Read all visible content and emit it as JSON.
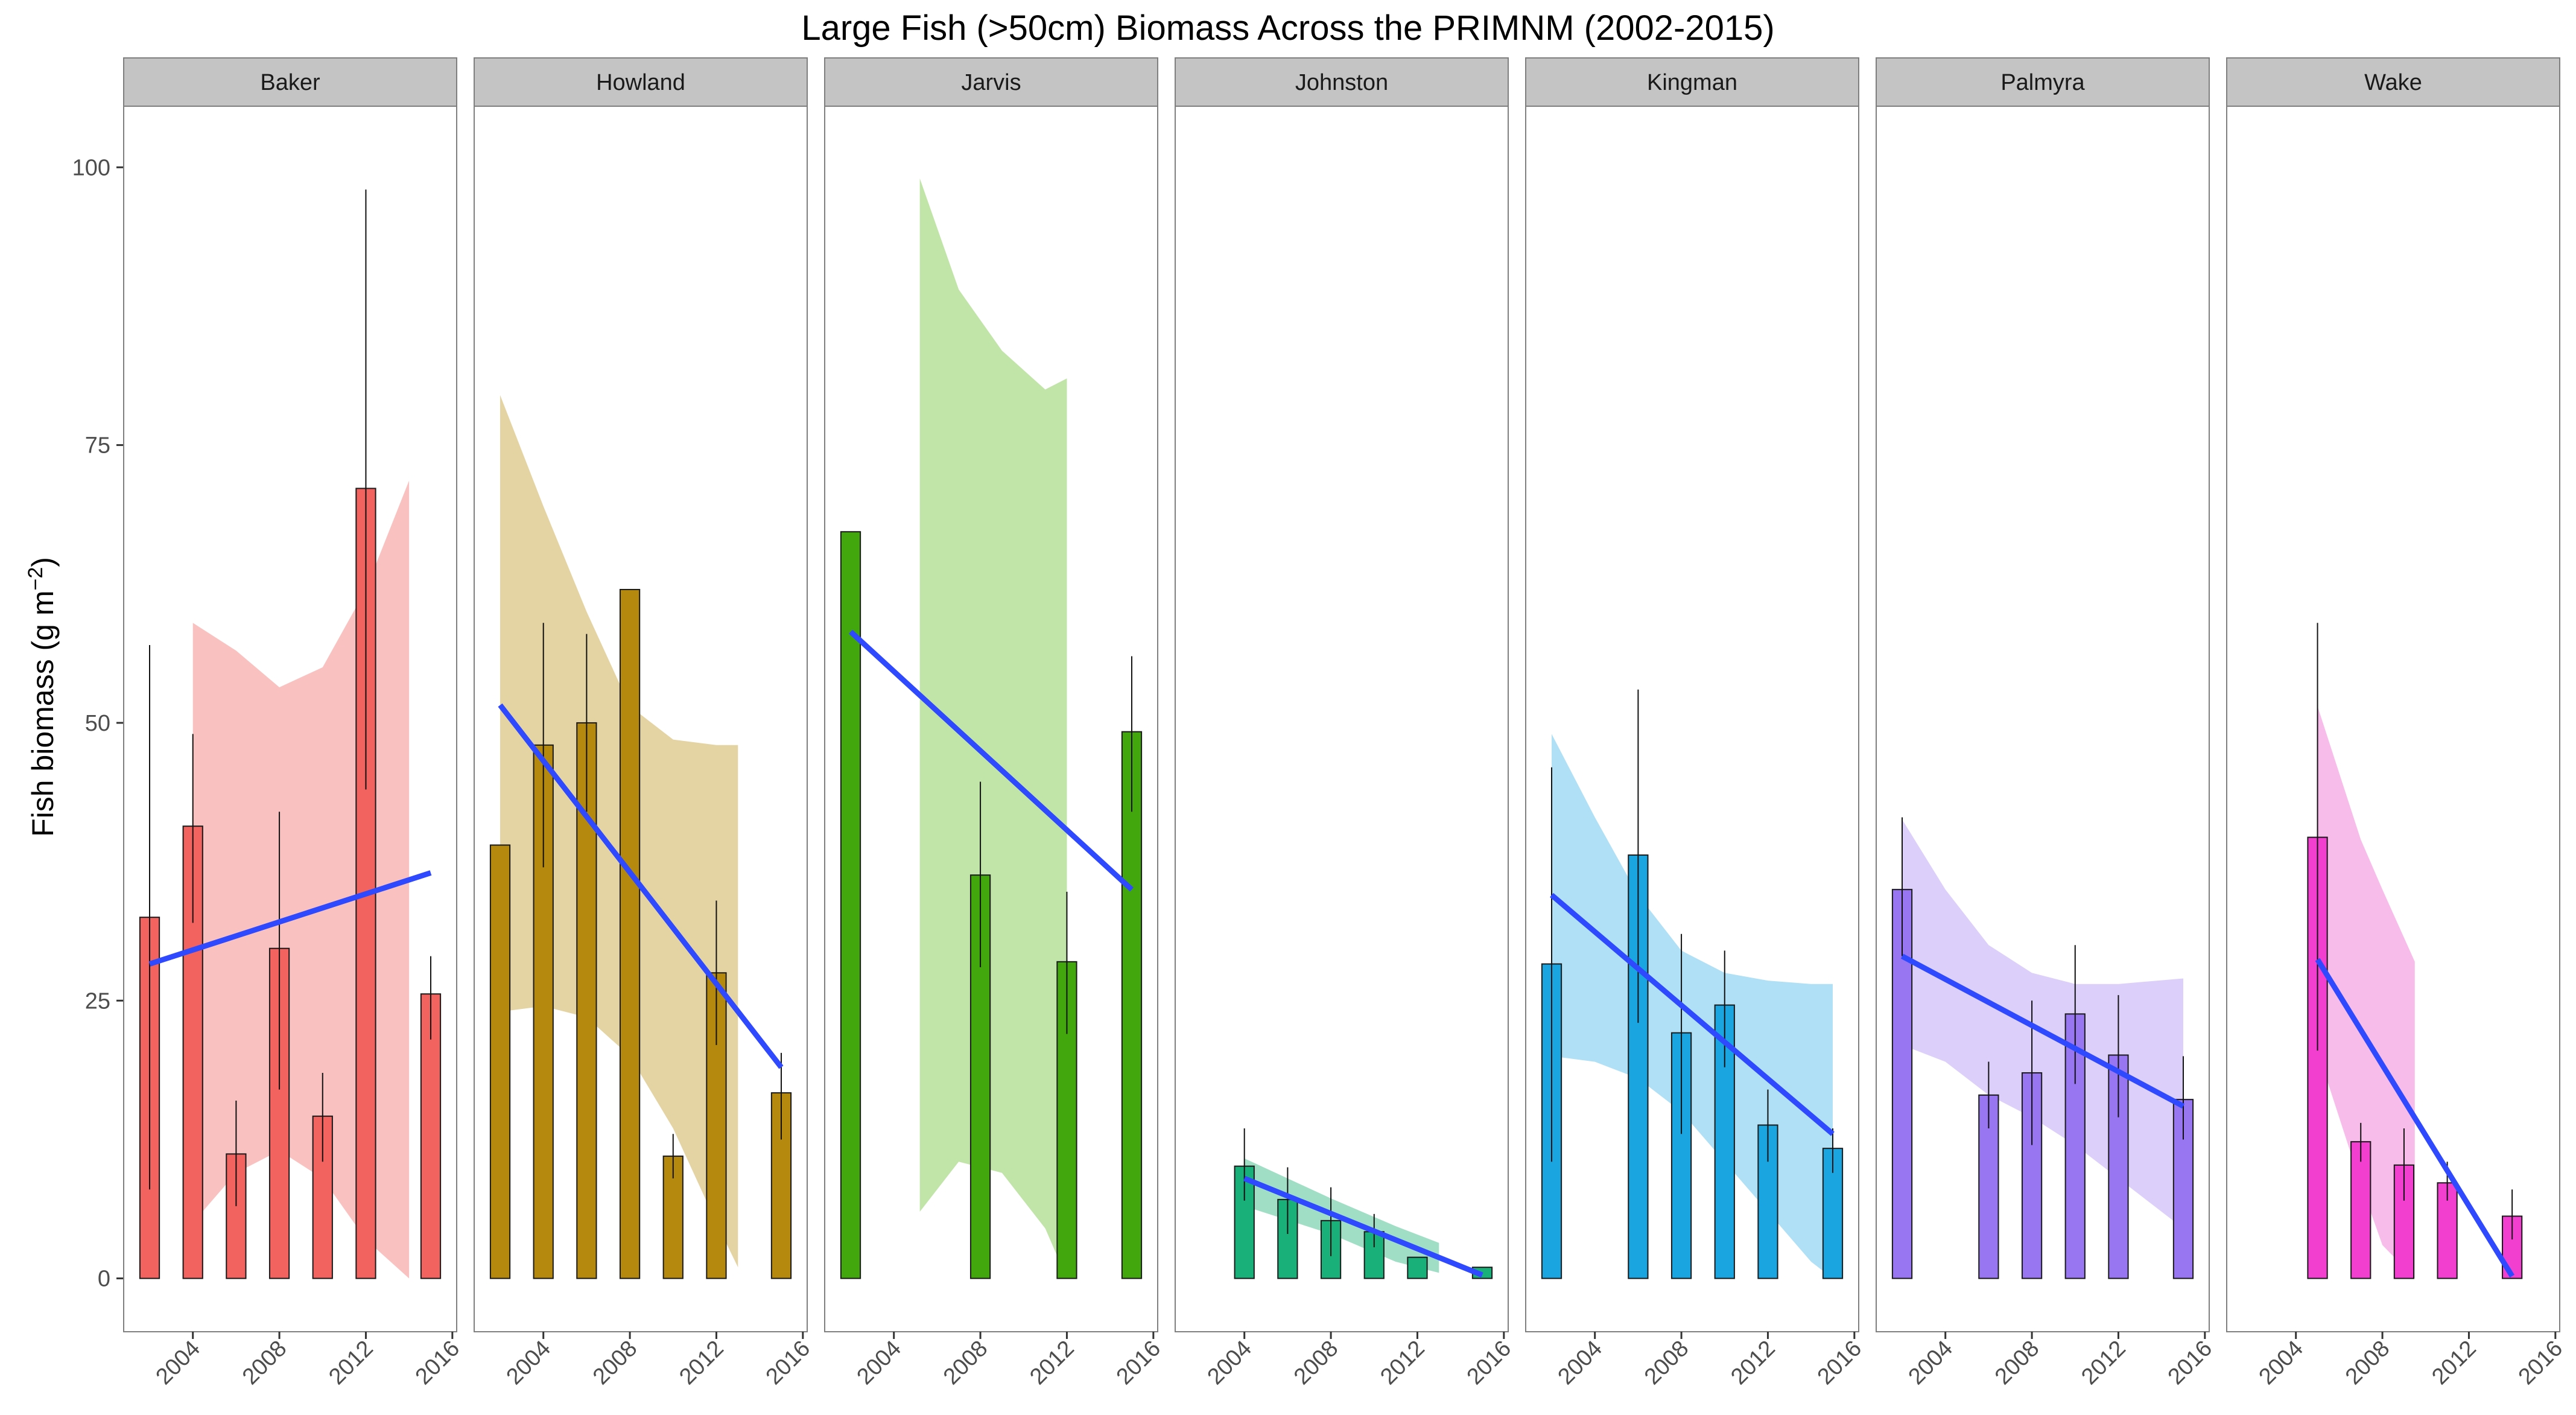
{
  "chart_data": {
    "type": "bar",
    "title": "Large Fish (>50cm) Biomass Across the PRIMNM (2002-2015)",
    "ylabel": "Fish biomass (g m",
    "ylabel_sup": "−2",
    "ylabel_suffix": ")",
    "xlabel": "",
    "ylim": [
      -4.8,
      105.5
    ],
    "xlim": [
      2000.8,
      2016.2
    ],
    "y_ticks": [
      "0",
      "25",
      "50",
      "75",
      "100"
    ],
    "y_tick_values": [
      0,
      25,
      50,
      75,
      100
    ],
    "x_ticks": [
      "2004",
      "2008",
      "2012",
      "2016"
    ],
    "x_tick_values": [
      2004,
      2008,
      2012,
      2016
    ],
    "bar_width_years": 0.9,
    "trend_color": "#2f49ff",
    "panels": [
      {
        "name": "Baker",
        "color": "#f2625f",
        "ribbon_color": "#f8b7b5",
        "bars": [
          {
            "x": 2002,
            "y": 32.5,
            "lo": 8,
            "hi": 57
          },
          {
            "x": 2004,
            "y": 40.7,
            "lo": 32,
            "hi": 49
          },
          {
            "x": 2006,
            "y": 11.2,
            "lo": 6.5,
            "hi": 16
          },
          {
            "x": 2008,
            "y": 29.7,
            "lo": 17,
            "hi": 42
          },
          {
            "x": 2010,
            "y": 14.6,
            "lo": 10.5,
            "hi": 18.5
          },
          {
            "x": 2012,
            "y": 71.1,
            "lo": 44,
            "hi": 98
          },
          {
            "x": 2015,
            "y": 25.6,
            "lo": 21.5,
            "hi": 29
          }
        ],
        "trend": {
          "x0": 2002,
          "y0": 28.3,
          "x1": 2015,
          "y1": 36.5
        },
        "ribbon": [
          {
            "x": 2004,
            "lo": 5.0,
            "hi": 59.0
          },
          {
            "x": 2006,
            "lo": 9.5,
            "hi": 56.5
          },
          {
            "x": 2008,
            "lo": 11.5,
            "hi": 53.2
          },
          {
            "x": 2010,
            "lo": 9.0,
            "hi": 55.0
          },
          {
            "x": 2012,
            "lo": 3.5,
            "hi": 62.0
          },
          {
            "x": 2014,
            "lo": 0,
            "hi": 71.8
          }
        ]
      },
      {
        "name": "Howland",
        "color": "#b5880e",
        "ribbon_color": "#e1cc93",
        "bars": [
          {
            "x": 2002,
            "y": 39.0
          },
          {
            "x": 2004,
            "y": 48.0,
            "lo": 37,
            "hi": 59
          },
          {
            "x": 2006,
            "y": 50.0,
            "lo": 42,
            "hi": 58
          },
          {
            "x": 2008,
            "y": 62.0
          },
          {
            "x": 2010,
            "y": 11.0,
            "lo": 9,
            "hi": 13
          },
          {
            "x": 2012,
            "y": 27.5,
            "lo": 21,
            "hi": 34
          },
          {
            "x": 2015,
            "y": 16.7,
            "lo": 12.5,
            "hi": 20.3
          }
        ],
        "trend": {
          "x0": 2002,
          "y0": 51.6,
          "x1": 2015,
          "y1": 19.0
        },
        "ribbon": [
          {
            "x": 2002,
            "lo": 24.0,
            "hi": 79.5
          },
          {
            "x": 2004,
            "lo": 24.5,
            "hi": 69.5
          },
          {
            "x": 2006,
            "lo": 23.5,
            "hi": 60.0
          },
          {
            "x": 2008,
            "lo": 20.0,
            "hi": 51.5
          },
          {
            "x": 2010,
            "lo": 13.5,
            "hi": 48.5
          },
          {
            "x": 2012,
            "lo": 5.0,
            "hi": 48.0
          },
          {
            "x": 2013,
            "lo": 1.0,
            "hi": 48.0
          }
        ]
      },
      {
        "name": "Jarvis",
        "color": "#42a70c",
        "ribbon_color": "#b6df99",
        "bars": [
          {
            "x": 2002,
            "y": 67.2
          },
          {
            "x": 2008,
            "y": 36.3,
            "lo": 28,
            "hi": 44.7
          },
          {
            "x": 2012,
            "y": 28.5,
            "lo": 22,
            "hi": 34.8
          },
          {
            "x": 2015,
            "y": 49.2,
            "lo": 42,
            "hi": 56
          }
        ],
        "trend": {
          "x0": 2002,
          "y0": 58.2,
          "x1": 2015,
          "y1": 35.0
        },
        "ribbon": [
          {
            "x": 2005.2,
            "lo": 6.0,
            "hi": 99.0
          },
          {
            "x": 2007,
            "lo": 10.5,
            "hi": 89.0
          },
          {
            "x": 2009,
            "lo": 9.5,
            "hi": 83.5
          },
          {
            "x": 2011,
            "lo": 4.5,
            "hi": 80.0
          },
          {
            "x": 2012,
            "lo": 0,
            "hi": 81.0
          }
        ]
      },
      {
        "name": "Johnston",
        "color": "#1ab07a",
        "ribbon_color": "#8fd8bb",
        "bars": [
          {
            "x": 2004,
            "y": 10.1,
            "lo": 7,
            "hi": 13.5
          },
          {
            "x": 2006,
            "y": 7.1,
            "lo": 4,
            "hi": 10
          },
          {
            "x": 2008,
            "y": 5.2,
            "lo": 2,
            "hi": 8.2
          },
          {
            "x": 2010,
            "y": 4.2,
            "lo": 2.8,
            "hi": 5.8
          },
          {
            "x": 2012,
            "y": 1.9
          },
          {
            "x": 2015,
            "y": 1.0
          }
        ],
        "trend": {
          "x0": 2004,
          "y0": 9.0,
          "x1": 2015,
          "y1": 0.3
        },
        "ribbon": [
          {
            "x": 2004,
            "lo": 6.5,
            "hi": 10.8
          },
          {
            "x": 2008,
            "lo": 4.0,
            "hi": 7.2
          },
          {
            "x": 2011,
            "lo": 1.5,
            "hi": 4.7
          },
          {
            "x": 2013,
            "lo": 0.5,
            "hi": 3.2
          }
        ]
      },
      {
        "name": "Kingman",
        "color": "#1aa5e0",
        "ribbon_color": "#a2dbf3",
        "bars": [
          {
            "x": 2002,
            "y": 28.3,
            "lo": 10.5,
            "hi": 46
          },
          {
            "x": 2006,
            "y": 38.1,
            "lo": 23,
            "hi": 53
          },
          {
            "x": 2008,
            "y": 22.1,
            "lo": 13,
            "hi": 31
          },
          {
            "x": 2010,
            "y": 24.6,
            "lo": 19,
            "hi": 29.5
          },
          {
            "x": 2012,
            "y": 13.8,
            "lo": 10.5,
            "hi": 17
          },
          {
            "x": 2015,
            "y": 11.7,
            "lo": 9.5,
            "hi": 13.5
          }
        ],
        "trend": {
          "x0": 2002,
          "y0": 34.5,
          "x1": 2015,
          "y1": 13.0
        },
        "ribbon": [
          {
            "x": 2002,
            "lo": 20.0,
            "hi": 49.0
          },
          {
            "x": 2004,
            "lo": 19.5,
            "hi": 41.5
          },
          {
            "x": 2006,
            "lo": 18.0,
            "hi": 34.5
          },
          {
            "x": 2008,
            "lo": 15.0,
            "hi": 29.5
          },
          {
            "x": 2010,
            "lo": 10.5,
            "hi": 27.5
          },
          {
            "x": 2012,
            "lo": 6.0,
            "hi": 26.8
          },
          {
            "x": 2014,
            "lo": 1.5,
            "hi": 26.5
          },
          {
            "x": 2015,
            "lo": 0,
            "hi": 26.5
          }
        ]
      },
      {
        "name": "Palmyra",
        "color": "#9876f2",
        "ribbon_color": "#d6c8f9",
        "bars": [
          {
            "x": 2002,
            "y": 35.0,
            "lo": 29,
            "hi": 41.5
          },
          {
            "x": 2006,
            "y": 16.5,
            "lo": 13.5,
            "hi": 19.5
          },
          {
            "x": 2008,
            "y": 18.5,
            "lo": 12,
            "hi": 25
          },
          {
            "x": 2010,
            "y": 23.8,
            "lo": 17.5,
            "hi": 30
          },
          {
            "x": 2012,
            "y": 20.1,
            "lo": 14.5,
            "hi": 25.5
          },
          {
            "x": 2015,
            "y": 16.1,
            "lo": 12.5,
            "hi": 20
          }
        ],
        "trend": {
          "x0": 2002,
          "y0": 29.0,
          "x1": 2015,
          "y1": 15.5
        },
        "ribbon": [
          {
            "x": 2002,
            "lo": 21.0,
            "hi": 41.3
          },
          {
            "x": 2004,
            "lo": 19.5,
            "hi": 35.0
          },
          {
            "x": 2006,
            "lo": 16.5,
            "hi": 30.0
          },
          {
            "x": 2008,
            "lo": 14.5,
            "hi": 27.5
          },
          {
            "x": 2010,
            "lo": 12.0,
            "hi": 26.5
          },
          {
            "x": 2012,
            "lo": 9.0,
            "hi": 26.5
          },
          {
            "x": 2015,
            "lo": 4.5,
            "hi": 27.0
          }
        ]
      },
      {
        "name": "Wake",
        "color": "#f23fd0",
        "ribbon_color": "#f7b0e8",
        "bars": [
          {
            "x": 2005,
            "y": 39.7,
            "lo": 20.5,
            "hi": 59
          },
          {
            "x": 2007,
            "y": 12.3,
            "lo": 10.5,
            "hi": 14
          },
          {
            "x": 2009,
            "y": 10.2,
            "lo": 7,
            "hi": 13.5
          },
          {
            "x": 2011,
            "y": 8.6,
            "lo": 7,
            "hi": 10.5
          },
          {
            "x": 2014,
            "y": 5.6,
            "lo": 3.5,
            "hi": 8
          }
        ],
        "trend": {
          "x0": 2005,
          "y0": 28.7,
          "x1": 2014,
          "y1": 0.2
        },
        "ribbon": [
          {
            "x": 2005,
            "lo": 20.5,
            "hi": 51.5
          },
          {
            "x": 2007,
            "lo": 8.5,
            "hi": 39.5
          },
          {
            "x": 2008,
            "lo": 3.0,
            "hi": 35.0
          },
          {
            "x": 2009.5,
            "lo": 0,
            "hi": 28.5
          }
        ]
      }
    ]
  }
}
